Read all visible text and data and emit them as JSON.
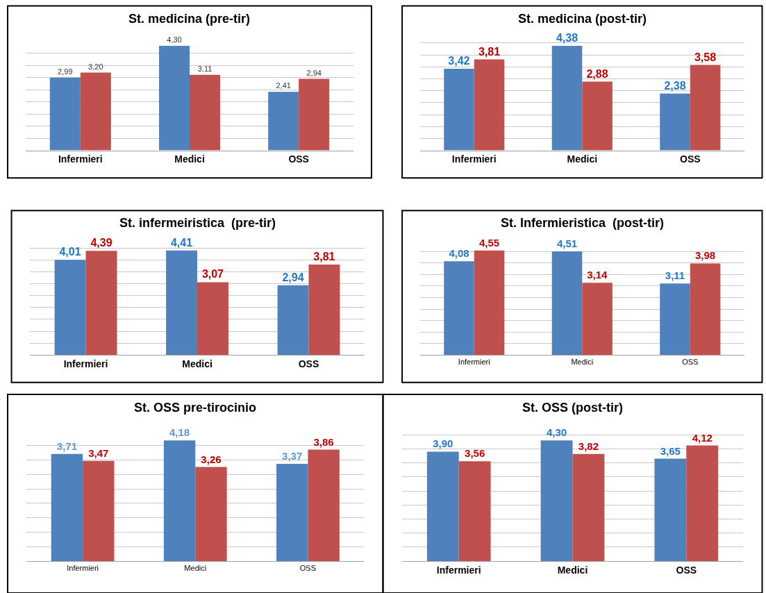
{
  "chart_data": [
    {
      "type": "bar",
      "title": "St. medicina (pre-tir)",
      "categories": [
        "Infermieri",
        "Medici",
        "OSS"
      ],
      "series": [
        {
          "color": "#4f81bd",
          "values": [
            2.99,
            4.3,
            2.41
          ],
          "value_labels": [
            "2,99",
            "4,30",
            "2,41"
          ]
        },
        {
          "color": "#c0504d",
          "values": [
            3.2,
            3.11,
            2.94
          ],
          "value_labels": [
            "3,20",
            "3,11",
            "2,94"
          ]
        }
      ],
      "grid": "y",
      "tick_labels": "x"
    },
    {
      "type": "bar",
      "title": "St. medicina (post-tir)",
      "categories": [
        "Infermieri",
        "Medici",
        "OSS"
      ],
      "series": [
        {
          "color": "#4f81bd",
          "values": [
            3.42,
            4.38,
            2.38
          ],
          "value_labels": [
            "3,42",
            "4,38",
            "2,38"
          ]
        },
        {
          "color": "#c0504d",
          "values": [
            3.81,
            2.88,
            3.58
          ],
          "value_labels": [
            "3,81",
            "2,88",
            "3,58"
          ]
        }
      ],
      "grid": "y",
      "tick_labels": "x"
    },
    {
      "type": "bar",
      "title": "St. infermeiristica  (pre-tir)",
      "categories": [
        "Infermieri",
        "Medici",
        "OSS"
      ],
      "series": [
        {
          "color": "#4f81bd",
          "values": [
            4.01,
            4.41,
            2.94
          ],
          "value_labels": [
            "4,01",
            "4,41",
            "2,94"
          ]
        },
        {
          "color": "#c0504d",
          "values": [
            4.39,
            3.07,
            3.81
          ],
          "value_labels": [
            "4,39",
            "3,07",
            "3,81"
          ]
        }
      ],
      "grid": "y",
      "tick_labels": "x"
    },
    {
      "type": "bar",
      "title": "St. Infermieristica  (post-tir)",
      "categories": [
        "Infermieri",
        "Medici",
        "OSS"
      ],
      "series": [
        {
          "color": "#4f81bd",
          "values": [
            4.08,
            4.51,
            3.11
          ],
          "value_labels": [
            "4,08",
            "4,51",
            "3,11"
          ]
        },
        {
          "color": "#c0504d",
          "values": [
            4.55,
            3.14,
            3.98
          ],
          "value_labels": [
            "4,55",
            "3,14",
            "3,98"
          ]
        }
      ],
      "grid": "y",
      "tick_labels": "x"
    },
    {
      "type": "bar",
      "title": "St. OSS pre-tirocinio",
      "categories": [
        "Infermieri",
        "Medici",
        "OSS"
      ],
      "series": [
        {
          "color": "#4f81bd",
          "values": [
            3.71,
            4.18,
            3.37
          ],
          "value_labels": [
            "3,71",
            "4,18",
            "3,37"
          ]
        },
        {
          "color": "#c0504d",
          "values": [
            3.47,
            3.26,
            3.86
          ],
          "value_labels": [
            "3,47",
            "3,26",
            "3,86"
          ]
        }
      ],
      "grid": "y",
      "tick_labels": "x"
    },
    {
      "type": "bar",
      "title": "St. OSS (post-tir)",
      "categories": [
        "Infermieri",
        "Medici",
        "OSS"
      ],
      "series": [
        {
          "color": "#4f81bd",
          "values": [
            3.9,
            4.3,
            3.65
          ],
          "value_labels": [
            "3,90",
            "4,30",
            "3,65"
          ]
        },
        {
          "color": "#c0504d",
          "values": [
            3.56,
            3.82,
            4.12
          ],
          "value_labels": [
            "3,56",
            "3,82",
            "4,12"
          ]
        }
      ],
      "grid": "y",
      "tick_labels": "x"
    }
  ]
}
